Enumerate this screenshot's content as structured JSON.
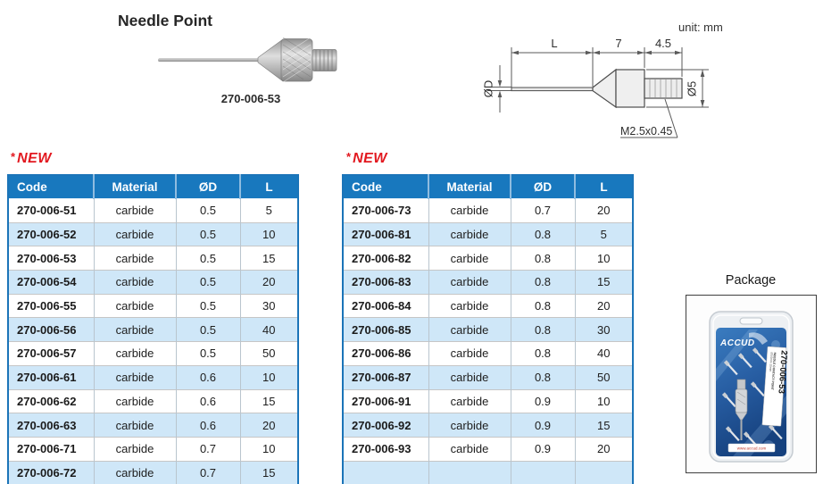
{
  "header": {
    "title": "Needle Point",
    "product_code": "270-006-53",
    "unit_label": "unit: mm"
  },
  "diagram": {
    "dim_length": "L",
    "dim_body": "7",
    "dim_thread": "4.5",
    "dim_needle_dia": "ØD",
    "dim_body_dia": "Ø5",
    "thread_spec": "M2.5x0.45"
  },
  "new_badge": {
    "star": "*",
    "label": "NEW"
  },
  "tables": {
    "headers": [
      "Code",
      "Material",
      "ØD",
      "L"
    ],
    "left_rows": [
      [
        "270-006-51",
        "carbide",
        "0.5",
        "5"
      ],
      [
        "270-006-52",
        "carbide",
        "0.5",
        "10"
      ],
      [
        "270-006-53",
        "carbide",
        "0.5",
        "15"
      ],
      [
        "270-006-54",
        "carbide",
        "0.5",
        "20"
      ],
      [
        "270-006-55",
        "carbide",
        "0.5",
        "30"
      ],
      [
        "270-006-56",
        "carbide",
        "0.5",
        "40"
      ],
      [
        "270-006-57",
        "carbide",
        "0.5",
        "50"
      ],
      [
        "270-006-61",
        "carbide",
        "0.6",
        "10"
      ],
      [
        "270-006-62",
        "carbide",
        "0.6",
        "15"
      ],
      [
        "270-006-63",
        "carbide",
        "0.6",
        "20"
      ],
      [
        "270-006-71",
        "carbide",
        "0.7",
        "10"
      ],
      [
        "270-006-72",
        "carbide",
        "0.7",
        "15"
      ]
    ],
    "right_rows": [
      [
        "270-006-73",
        "carbide",
        "0.7",
        "20"
      ],
      [
        "270-006-81",
        "carbide",
        "0.8",
        "5"
      ],
      [
        "270-006-82",
        "carbide",
        "0.8",
        "10"
      ],
      [
        "270-006-83",
        "carbide",
        "0.8",
        "15"
      ],
      [
        "270-006-84",
        "carbide",
        "0.8",
        "20"
      ],
      [
        "270-006-85",
        "carbide",
        "0.8",
        "30"
      ],
      [
        "270-006-86",
        "carbide",
        "0.8",
        "40"
      ],
      [
        "270-006-87",
        "carbide",
        "0.8",
        "50"
      ],
      [
        "270-006-91",
        "carbide",
        "0.9",
        "10"
      ],
      [
        "270-006-92",
        "carbide",
        "0.9",
        "15"
      ],
      [
        "270-006-93",
        "carbide",
        "0.9",
        "20"
      ],
      [
        "",
        "",
        "",
        ""
      ]
    ]
  },
  "package": {
    "title": "Package",
    "brand": "ACCUD",
    "label_code": "270-006-53",
    "label_desc": "NEEDLE CONTACT POINT",
    "label_size": "Ø0.5mm 15mm",
    "website": "www.accud.com"
  },
  "colors": {
    "table_header_blue": "#1878be",
    "table_border_blue": "#1b74b8",
    "row_alt_blue": "#cfe7f8",
    "new_red": "#e2181f",
    "package_card_blue": "#2a68ae"
  }
}
